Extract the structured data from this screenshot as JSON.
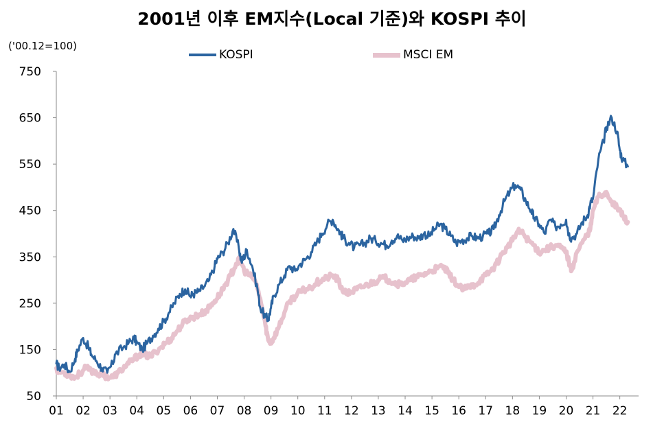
{
  "chart_data": {
    "type": "line",
    "title": "2001년 이후 EM지수(Local 기준)와 KOSPI 추이",
    "unit_label": "('00.12=100)",
    "ylim": [
      50,
      750
    ],
    "yticks": [
      "50",
      "150",
      "250",
      "350",
      "450",
      "550",
      "650",
      "750"
    ],
    "xlim": [
      2001,
      2022.7
    ],
    "xticks": [
      "01",
      "02",
      "03",
      "04",
      "05",
      "06",
      "07",
      "08",
      "09",
      "10",
      "11",
      "12",
      "13",
      "14",
      "15",
      "16",
      "17",
      "18",
      "19",
      "20",
      "21",
      "22"
    ],
    "legend_position": "top",
    "grid": false,
    "series": [
      {
        "name": "KOSPI",
        "color": "#2b64a0",
        "x": [
          2001.0,
          2001.1,
          2001.3,
          2001.5,
          2001.7,
          2001.8,
          2002.0,
          2002.2,
          2002.3,
          2002.5,
          2002.7,
          2002.9,
          2003.1,
          2003.2,
          2003.5,
          2003.7,
          2003.9,
          2004.0,
          2004.2,
          2004.4,
          2004.6,
          2004.8,
          2005.0,
          2005.2,
          2005.4,
          2005.6,
          2005.8,
          2006.0,
          2006.1,
          2006.3,
          2006.5,
          2006.7,
          2006.9,
          2007.0,
          2007.2,
          2007.4,
          2007.6,
          2007.8,
          2007.9,
          2008.0,
          2008.1,
          2008.3,
          2008.5,
          2008.6,
          2008.8,
          2008.9,
          2009.0,
          2009.1,
          2009.3,
          2009.5,
          2009.7,
          2009.9,
          2010.1,
          2010.3,
          2010.5,
          2010.7,
          2010.9,
          2011.1,
          2011.3,
          2011.5,
          2011.6,
          2011.7,
          2011.9,
          2012.1,
          2012.3,
          2012.5,
          2012.7,
          2012.9,
          2013.1,
          2013.3,
          2013.5,
          2013.7,
          2013.9,
          2014.1,
          2014.3,
          2014.5,
          2014.7,
          2014.9,
          2015.1,
          2015.3,
          2015.5,
          2015.7,
          2015.9,
          2016.1,
          2016.3,
          2016.5,
          2016.7,
          2016.9,
          2017.1,
          2017.3,
          2017.5,
          2017.7,
          2017.9,
          2018.1,
          2018.3,
          2018.5,
          2018.7,
          2018.8,
          2019.0,
          2019.2,
          2019.4,
          2019.6,
          2019.8,
          2020.0,
          2020.1,
          2020.2,
          2020.4,
          2020.6,
          2020.8,
          2020.9,
          2021.0,
          2021.2,
          2021.4,
          2021.5,
          2021.7,
          2021.9,
          2022.0,
          2022.1,
          2022.3
        ],
        "values": [
          120,
          110,
          118,
          102,
          130,
          150,
          175,
          155,
          140,
          125,
          110,
          100,
          120,
          140,
          155,
          165,
          175,
          165,
          150,
          165,
          180,
          195,
          210,
          230,
          250,
          270,
          280,
          265,
          270,
          275,
          285,
          300,
          330,
          345,
          360,
          380,
          410,
          370,
          340,
          350,
          365,
          330,
          280,
          240,
          220,
          215,
          240,
          265,
          290,
          310,
          330,
          320,
          335,
          345,
          360,
          380,
          400,
          420,
          430,
          410,
          400,
          390,
          380,
          370,
          375,
          380,
          390,
          385,
          380,
          375,
          385,
          395,
          385,
          390,
          395,
          390,
          400,
          395,
          410,
          420,
          410,
          395,
          380,
          385,
          390,
          395,
          390,
          395,
          400,
          410,
          440,
          470,
          490,
          505,
          495,
          470,
          450,
          435,
          420,
          400,
          430,
          415,
          420,
          430,
          400,
          390,
          400,
          425,
          440,
          465,
          475,
          560,
          600,
          630,
          650,
          620,
          580,
          560,
          545
        ],
        "noise": 10
      },
      {
        "name": "MSCI EM",
        "color": "#e7c2cd",
        "x": [
          2001.0,
          2001.1,
          2001.3,
          2001.5,
          2001.7,
          2001.9,
          2002.1,
          2002.3,
          2002.5,
          2002.7,
          2002.9,
          2003.1,
          2003.3,
          2003.5,
          2003.7,
          2003.9,
          2004.1,
          2004.3,
          2004.5,
          2004.7,
          2004.9,
          2005.1,
          2005.3,
          2005.5,
          2005.7,
          2005.9,
          2006.1,
          2006.3,
          2006.5,
          2006.7,
          2006.9,
          2007.1,
          2007.3,
          2007.5,
          2007.7,
          2007.85,
          2008.0,
          2008.2,
          2008.4,
          2008.6,
          2008.8,
          2008.9,
          2009.0,
          2009.1,
          2009.3,
          2009.5,
          2009.7,
          2009.9,
          2010.1,
          2010.3,
          2010.5,
          2010.7,
          2010.9,
          2011.1,
          2011.3,
          2011.5,
          2011.6,
          2011.8,
          2012.0,
          2012.2,
          2012.4,
          2012.6,
          2012.8,
          2013.0,
          2013.2,
          2013.4,
          2013.6,
          2013.8,
          2014.0,
          2014.2,
          2014.4,
          2014.6,
          2014.8,
          2015.0,
          2015.2,
          2015.4,
          2015.6,
          2015.8,
          2016.0,
          2016.2,
          2016.4,
          2016.6,
          2016.8,
          2017.0,
          2017.2,
          2017.4,
          2017.6,
          2017.8,
          2018.0,
          2018.2,
          2018.4,
          2018.6,
          2018.8,
          2019.0,
          2019.2,
          2019.4,
          2019.6,
          2019.8,
          2020.0,
          2020.1,
          2020.2,
          2020.4,
          2020.6,
          2020.8,
          2020.9,
          2021.0,
          2021.2,
          2021.4,
          2021.5,
          2021.7,
          2021.9,
          2022.0,
          2022.1,
          2022.3
        ],
        "values": [
          110,
          102,
          100,
          95,
          90,
          100,
          110,
          105,
          100,
          95,
          92,
          90,
          100,
          110,
          120,
          130,
          140,
          138,
          135,
          145,
          155,
          165,
          175,
          190,
          205,
          215,
          220,
          225,
          230,
          240,
          255,
          270,
          290,
          310,
          335,
          345,
          320,
          310,
          300,
          260,
          200,
          170,
          165,
          175,
          200,
          230,
          255,
          265,
          275,
          280,
          285,
          295,
          300,
          305,
          310,
          300,
          285,
          270,
          275,
          280,
          285,
          290,
          295,
          300,
          305,
          300,
          295,
          290,
          295,
          300,
          305,
          310,
          315,
          320,
          325,
          330,
          315,
          300,
          285,
          280,
          285,
          290,
          300,
          310,
          320,
          335,
          355,
          370,
          385,
          405,
          400,
          385,
          375,
          360,
          365,
          370,
          375,
          370,
          360,
          340,
          320,
          360,
          380,
          400,
          410,
          450,
          480,
          485,
          490,
          470,
          455,
          450,
          440,
          425
        ],
        "noise": 7
      }
    ]
  }
}
